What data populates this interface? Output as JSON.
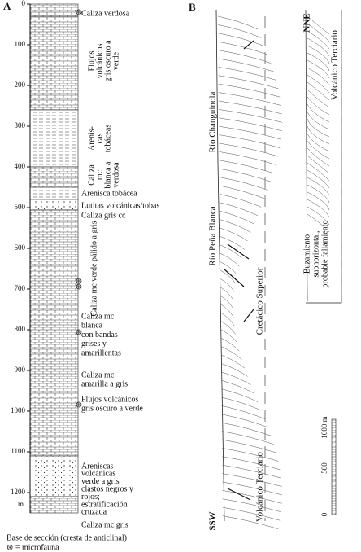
{
  "panel_a": {
    "label": "A",
    "depth_ticks": [
      0,
      100,
      200,
      300,
      400,
      500,
      600,
      700,
      800,
      900,
      1000,
      1100,
      1200
    ],
    "depth_unit": "m",
    "units": [
      {
        "lines": [
          "Caliza verdosa"
        ]
      },
      {
        "lines": [
          "Flujos",
          "volcánicos",
          "gris oscuro a",
          "verde"
        ]
      },
      {
        "lines": [
          "Arenis-",
          "cas",
          "tobáceas"
        ]
      },
      {
        "lines": [
          "Caliza",
          "mc",
          "blanca a",
          "verdosa"
        ]
      },
      {
        "lines": [
          "Arenisca tobácea"
        ]
      },
      {
        "lines": [
          "Lutitas volcánicas/tobas"
        ]
      },
      {
        "lines": [
          "Caliza gris cc"
        ]
      },
      {
        "lines": [
          "Caliza mc verde pálido a gris"
        ]
      },
      {
        "lines": [
          "Caliza mc",
          "blanca",
          "con bandas",
          "grises y",
          "amarillentas"
        ]
      },
      {
        "lines": [
          "Caliza mc",
          "amarilla a gris"
        ]
      },
      {
        "lines": [
          "Flujos volcánicos",
          "gris oscuro a verde"
        ]
      },
      {
        "lines": [
          "Areniscas",
          "volcánicas",
          "verde a gris",
          "clastos negros y",
          "rojos;",
          "estratificación",
          "cruzada"
        ]
      },
      {
        "lines": [
          "Caliza mc gris"
        ]
      }
    ],
    "base_note": "Base de sección (cresta de anticlinal)",
    "legend": "⊛ = microfauna"
  },
  "panel_b": {
    "label": "B",
    "labels": [
      "Río Changuinola",
      "Río Peña Blanca",
      "Cretácico Superior",
      "Volcánico Terciario",
      "SSW",
      "NNE",
      "Volcánico Terciario"
    ],
    "note_lines": [
      "Buzamiento",
      "subhorizontal,",
      "probable fallamiento"
    ],
    "scale_unit": "1000 m",
    "scale_ticks": [
      "500",
      "0"
    ]
  }
}
